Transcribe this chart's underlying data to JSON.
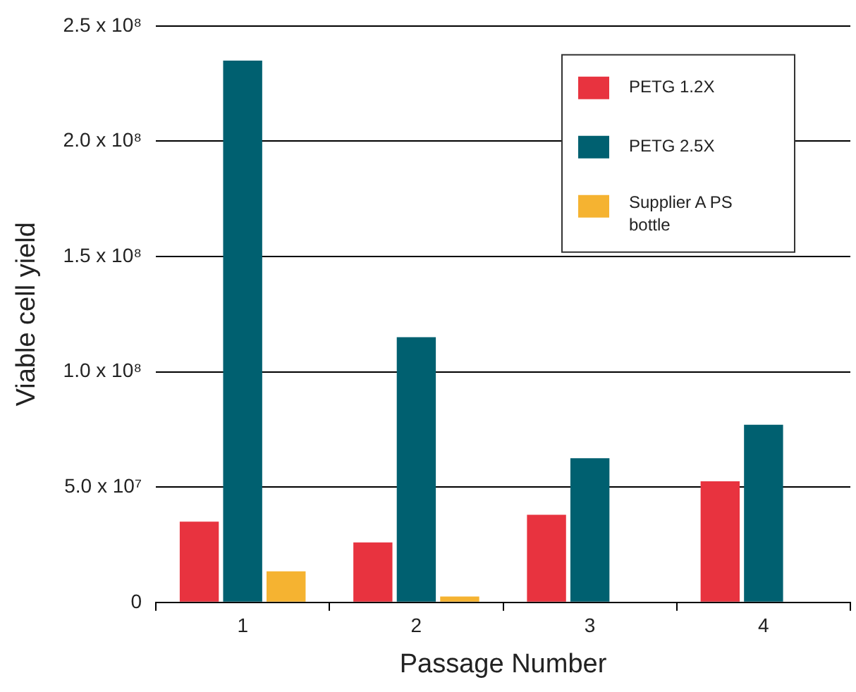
{
  "chart_data": {
    "type": "bar",
    "xlabel": "Passage Number",
    "ylabel": "Viable cell yield",
    "categories": [
      "1",
      "2",
      "3",
      "4"
    ],
    "series": [
      {
        "name": "PETG 1.2X",
        "color": "#e8333f",
        "values": [
          35000000,
          26000000,
          38000000,
          52500000
        ]
      },
      {
        "name": "PETG 2.5X",
        "color": "#006070",
        "values": [
          235000000,
          115000000,
          62500000,
          77000000
        ]
      },
      {
        "name": "Supplier A PS bottle",
        "color": "#f5b331",
        "values": [
          13500000,
          2500000,
          null,
          null
        ]
      }
    ],
    "ylim": [
      0,
      250000000
    ],
    "yticks": [
      {
        "value": 0,
        "label": "0"
      },
      {
        "value": 50000000,
        "label": "5.0 x 10⁷"
      },
      {
        "value": 100000000,
        "label": "1.0 x 10⁸"
      },
      {
        "value": 150000000,
        "label": "1.5 x 10⁸"
      },
      {
        "value": 200000000,
        "label": "2.0 x 10⁸"
      },
      {
        "value": 250000000,
        "label": "2.5 x 10⁸"
      }
    ],
    "grid": "y",
    "legend": "top right"
  }
}
